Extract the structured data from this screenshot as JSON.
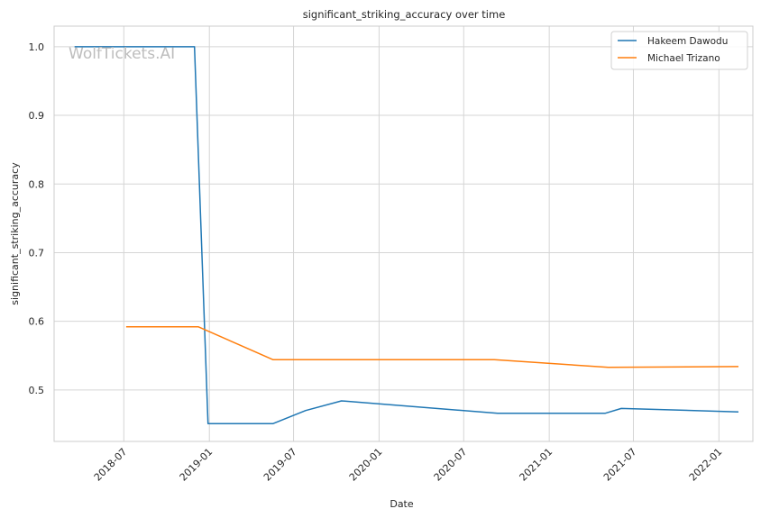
{
  "watermark": "WolfTickets.AI",
  "colors": {
    "Hakeem Dawodu": "#1f77b4",
    "Michael Trizano": "#ff7f0e",
    "grid": "#d5d5d5",
    "spine": "#cccccc"
  },
  "chart_data": {
    "type": "line",
    "title": "significant_striking_accuracy over time",
    "xlabel": "Date",
    "ylabel": "significant_striking_accuracy",
    "x_scale": "date",
    "xlim": [
      "2018-02-01",
      "2022-03-15"
    ],
    "ylim": [
      0.425,
      1.03
    ],
    "x_ticks": [
      "2018-07-01",
      "2019-01-01",
      "2019-07-01",
      "2020-01-01",
      "2020-07-01",
      "2021-01-01",
      "2021-07-01",
      "2022-01-01"
    ],
    "x_tick_labels": [
      "2018-07",
      "2019-01",
      "2019-07",
      "2020-01",
      "2020-07",
      "2021-01",
      "2021-07",
      "2022-01"
    ],
    "y_ticks": [
      0.5,
      0.6,
      0.7,
      0.8,
      0.9,
      1.0
    ],
    "y_tick_labels": [
      "0.5",
      "0.6",
      "0.7",
      "0.8",
      "0.9",
      "1.0"
    ],
    "grid": true,
    "legend_position": "top-right",
    "series": [
      {
        "name": "Hakeem Dawodu",
        "x": [
          "2018-03-17",
          "2018-11-30",
          "2018-12-29",
          "2019-05-18",
          "2019-07-27",
          "2019-10-12",
          "2020-09-12",
          "2021-05-01",
          "2021-06-05",
          "2022-02-12"
        ],
        "y": [
          1.0,
          1.0,
          0.451,
          0.451,
          0.47,
          0.484,
          0.466,
          0.466,
          0.473,
          0.468
        ]
      },
      {
        "name": "Michael Trizano",
        "x": [
          "2018-07-06",
          "2018-12-08",
          "2019-05-18",
          "2020-09-05",
          "2021-05-08",
          "2022-02-12"
        ],
        "y": [
          0.592,
          0.592,
          0.544,
          0.544,
          0.533,
          0.534
        ]
      }
    ]
  }
}
